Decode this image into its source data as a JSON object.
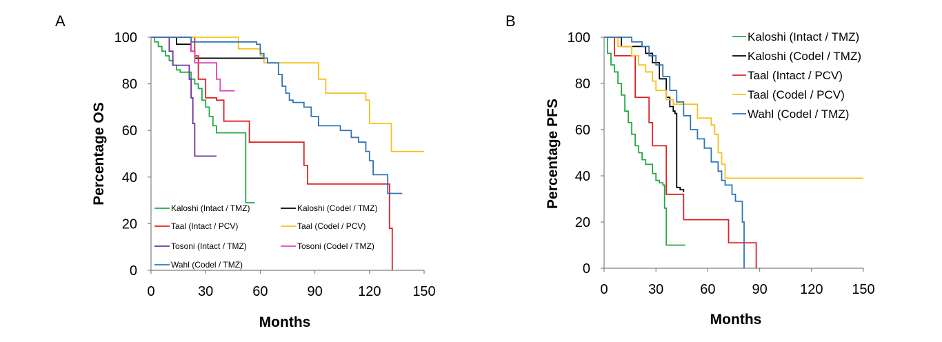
{
  "chart_data": [
    {
      "type": "line",
      "panel_label": "A",
      "xlabel": "Months",
      "ylabel": "Percentage OS",
      "xlim": [
        0,
        150
      ],
      "ylim": [
        0,
        100
      ],
      "xticks": [
        "0",
        "30",
        "60",
        "90",
        "120",
        "150"
      ],
      "yticks": [
        "0",
        "20",
        "40",
        "60",
        "80",
        "100"
      ],
      "grid": false,
      "legend_position": "bottom-left, inside plot, two columns",
      "series": [
        {
          "name": "Kaloshi (Intact / TMZ)",
          "color": "#22aa44",
          "x": [
            0,
            2,
            4,
            6,
            8,
            10,
            12,
            14,
            16,
            18,
            20,
            22,
            24,
            26,
            28,
            30,
            32,
            34,
            36,
            38,
            45,
            50,
            52,
            54,
            57
          ],
          "y": [
            100,
            98,
            96,
            94,
            92,
            90,
            88,
            86,
            85,
            85,
            85,
            82,
            80,
            78,
            73,
            70,
            66,
            62,
            59,
            59,
            59,
            59,
            29,
            29,
            29
          ]
        },
        {
          "name": "Kaloshi (Codel / TMZ)",
          "color": "#000000",
          "x": [
            0,
            12,
            14,
            20,
            22,
            24,
            60,
            62
          ],
          "y": [
            100,
            100,
            97,
            97,
            94,
            91,
            91,
            90
          ]
        },
        {
          "name": "Taal  (Intact / PCV)",
          "color": "#dd2222",
          "x": [
            0,
            22,
            24,
            26,
            30,
            36,
            38,
            40,
            52,
            54,
            82,
            84,
            86,
            100,
            120,
            130,
            131,
            132,
            132.5
          ],
          "y": [
            100,
            100,
            92,
            82,
            74,
            73,
            73,
            64,
            64,
            55,
            55,
            45,
            37,
            37,
            37,
            37,
            18,
            18,
            0
          ]
        },
        {
          "name": "Taal (Codel / PCV)",
          "color": "#f4c020",
          "x": [
            0,
            46,
            48,
            52,
            56,
            60,
            62,
            90,
            92,
            96,
            100,
            110,
            118,
            120,
            130,
            132,
            140,
            150
          ],
          "y": [
            100,
            100,
            95,
            95,
            95,
            92,
            89,
            89,
            82,
            76,
            76,
            76,
            73,
            63,
            63,
            51,
            51,
            51
          ]
        },
        {
          "name": "Tosoni (Intact / TMZ)",
          "color": "#7030a0",
          "x": [
            0,
            8,
            10,
            12,
            16,
            20,
            21,
            22,
            23,
            24,
            30,
            36
          ],
          "y": [
            100,
            100,
            94,
            88,
            88,
            88,
            82,
            74,
            63,
            49,
            49,
            49
          ]
        },
        {
          "name": "Tosoni (Codel / TMZ)",
          "color": "#dd44bb",
          "x": [
            0,
            20,
            22,
            24,
            34,
            36,
            38,
            46
          ],
          "y": [
            100,
            100,
            94,
            89,
            89,
            82,
            77,
            77
          ]
        },
        {
          "name": "Wahl (Codel / TMZ)",
          "color": "#2e75b6",
          "x": [
            0,
            18,
            22,
            24,
            26,
            56,
            58,
            60,
            62,
            64,
            66,
            68,
            70,
            72,
            74,
            76,
            78,
            80,
            82,
            84,
            88,
            92,
            96,
            100,
            104,
            110,
            114,
            118,
            120,
            122,
            124,
            126,
            128,
            130,
            132,
            138
          ],
          "y": [
            100,
            100,
            98,
            98,
            98,
            98,
            97,
            93,
            91,
            89,
            89,
            89,
            84,
            79,
            76,
            73,
            72,
            72,
            72,
            70,
            66,
            62,
            62,
            62,
            60,
            57,
            55,
            51,
            47,
            41,
            41,
            41,
            41,
            33,
            33,
            33
          ]
        }
      ],
      "legend_order": [
        "Kaloshi (Intact / TMZ)",
        "Kaloshi (Codel / TMZ)",
        "Taal  (Intact / PCV)",
        "Taal (Codel / PCV)",
        "Tosoni (Intact / TMZ)",
        "Tosoni (Codel / TMZ)",
        "Wahl (Codel / TMZ)"
      ]
    },
    {
      "type": "line",
      "panel_label": "B",
      "xlabel": "Months",
      "ylabel": "Percentage PFS",
      "xlim": [
        0,
        150
      ],
      "ylim": [
        0,
        100
      ],
      "xticks": [
        "0",
        "30",
        "60",
        "90",
        "120",
        "150"
      ],
      "yticks": [
        "0",
        "20",
        "40",
        "60",
        "80",
        "100"
      ],
      "grid": false,
      "legend_position": "top-right, outside plot area",
      "series": [
        {
          "name": "Kaloshi (Intact / TMZ)",
          "color": "#22aa44",
          "x": [
            0,
            2,
            4,
            6,
            8,
            10,
            12,
            14,
            16,
            18,
            20,
            22,
            24,
            26,
            28,
            30,
            32,
            34,
            35,
            36,
            40,
            47
          ],
          "y": [
            100,
            93,
            88,
            85,
            80,
            75,
            68,
            63,
            58,
            53,
            50,
            47,
            45,
            45,
            41,
            38,
            37,
            36,
            26,
            10,
            10,
            10
          ]
        },
        {
          "name": "Kaloshi (Codel / TMZ)",
          "color": "#000000",
          "x": [
            0,
            8,
            10,
            20,
            24,
            28,
            32,
            36,
            38,
            40,
            41,
            42,
            44,
            46
          ],
          "y": [
            100,
            100,
            96,
            96,
            93,
            89,
            82,
            74,
            70,
            68,
            67,
            35,
            34,
            33
          ]
        },
        {
          "name": "Taal (Intact / PCV)",
          "color": "#dd2222",
          "x": [
            0,
            4,
            6,
            12,
            16,
            18,
            24,
            26,
            28,
            30,
            34,
            36,
            38,
            46,
            70,
            72,
            80,
            86,
            88
          ],
          "y": [
            100,
            100,
            92,
            92,
            92,
            74,
            74,
            63,
            53,
            53,
            53,
            32,
            32,
            21,
            21,
            11,
            11,
            11,
            0
          ]
        },
        {
          "name": "Taal (Codel / PCV)",
          "color": "#f4c020",
          "x": [
            0,
            6,
            8,
            12,
            16,
            20,
            24,
            28,
            30,
            36,
            40,
            50,
            54,
            60,
            62,
            64,
            66,
            68,
            70,
            80,
            100,
            150
          ],
          "y": [
            100,
            100,
            96,
            96,
            92,
            88,
            85,
            81,
            77,
            73,
            71,
            71,
            65,
            65,
            62,
            58,
            50,
            45,
            39,
            39,
            39,
            39
          ]
        },
        {
          "name": "Wahl (Codel / TMZ)",
          "color": "#2e75b6",
          "x": [
            0,
            14,
            16,
            22,
            26,
            30,
            34,
            38,
            42,
            46,
            50,
            54,
            58,
            62,
            66,
            68,
            70,
            74,
            76,
            80,
            81
          ],
          "y": [
            100,
            100,
            98,
            96,
            92,
            88,
            83,
            77,
            72,
            66,
            60,
            56,
            52,
            46,
            42,
            38,
            36,
            32,
            29,
            20,
            0
          ]
        }
      ],
      "legend_order": [
        "Kaloshi (Intact / TMZ)",
        "Kaloshi (Codel / TMZ)",
        "Taal (Intact / PCV)",
        "Taal (Codel / PCV)",
        "Wahl (Codel / TMZ)"
      ]
    }
  ]
}
